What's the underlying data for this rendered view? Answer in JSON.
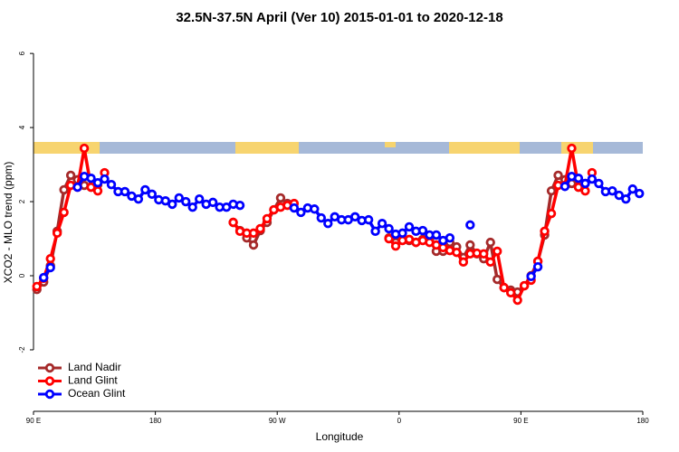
{
  "chart_data": {
    "type": "line",
    "title": "32.5N-37.5N April (Ver 10)   2015-01-01 to 2020-12-18",
    "x_label": "Longitude",
    "y_label": "XCO2 - MLO trend (ppm)",
    "xlim": [
      90,
      540
    ],
    "ylim": [
      -3.66,
      6.54
    ],
    "xticks": [
      {
        "value": 90,
        "label": "90 E"
      },
      180,
      {
        "value": 270,
        "label": "90 W"
      },
      {
        "value": 360,
        "label": "0"
      },
      {
        "value": 450,
        "label": "90 E"
      },
      {
        "value": 540,
        "label": "180"
      }
    ],
    "yticks": [
      -2,
      0,
      2,
      4,
      6
    ],
    "legend": "bottomleft",
    "series": [
      {
        "name": "Land Nadir",
        "color": "#a52a2a",
        "x": [
          92.5,
          97.5,
          102.5,
          107.5,
          112.5,
          117.5,
          122.5,
          127.5,
          132.5,
          137.5,
          142.5,
          237.5,
          242.5,
          247.5,
          252.5,
          257.5,
          262.5,
          267.5,
          272.5,
          277.5,
          282.5,
          352.5,
          357.5,
          362.5,
          367.5,
          372.5,
          377.5,
          382.5,
          387.5,
          392.5,
          397.5,
          402.5,
          407.5,
          412.5,
          417.5,
          422.5,
          427.5,
          432.5,
          437.5,
          442.5,
          447.5,
          452.5,
          457.5,
          462.5,
          467.5,
          472.5,
          477.5,
          482.5,
          487.5,
          492.5,
          497.5
        ],
        "values": [
          -0.37,
          -0.17,
          0.27,
          1.2,
          2.32,
          2.71,
          2.59,
          2.44,
          2.39,
          2.46,
          null,
          1.44,
          1.22,
          1.02,
          0.83,
          1.22,
          1.44,
          1.78,
          2.1,
          1.95,
          null,
          1.02,
          0.9,
          0.98,
          0.95,
          0.9,
          0.98,
          0.98,
          0.66,
          0.66,
          0.9,
          0.78,
          0.49,
          0.83,
          0.59,
          0.46,
          0.9,
          -0.1,
          -0.32,
          -0.39,
          -0.44,
          -0.27,
          0.0,
          0.39,
          1.1,
          2.29,
          2.71,
          2.59,
          2.49,
          2.39,
          2.49
        ]
      },
      {
        "name": "Land Glint",
        "color": "#ff0000",
        "x": [
          92.5,
          97.5,
          102.5,
          107.5,
          112.5,
          117.5,
          122.5,
          127.5,
          132.5,
          137.5,
          142.5,
          147.5,
          237.5,
          242.5,
          247.5,
          252.5,
          257.5,
          262.5,
          267.5,
          272.5,
          277.5,
          282.5,
          287.5,
          352.5,
          357.5,
          362.5,
          367.5,
          372.5,
          377.5,
          382.5,
          387.5,
          392.5,
          397.5,
          402.5,
          407.5,
          412.5,
          417.5,
          422.5,
          427.5,
          432.5,
          437.5,
          442.5,
          447.5,
          452.5,
          457.5,
          462.5,
          467.5,
          472.5,
          477.5,
          482.5,
          487.5,
          492.5,
          497.5,
          502.5
        ],
        "values": [
          -0.29,
          -0.07,
          0.46,
          1.15,
          1.71,
          2.44,
          2.39,
          3.44,
          2.39,
          2.29,
          2.78,
          null,
          1.44,
          1.2,
          1.15,
          1.15,
          1.27,
          1.54,
          1.78,
          1.85,
          1.9,
          1.95,
          null,
          1.0,
          0.8,
          0.95,
          0.98,
          0.9,
          0.95,
          0.9,
          0.83,
          0.76,
          0.68,
          0.63,
          0.37,
          0.59,
          0.61,
          0.59,
          0.37,
          0.66,
          -0.32,
          -0.46,
          -0.66,
          -0.27,
          -0.12,
          0.39,
          1.2,
          1.68,
          2.44,
          2.44,
          3.44,
          2.39,
          2.29,
          2.78
        ]
      },
      {
        "name": "Ocean Glint",
        "color": "#0000ff",
        "x": [
          97.5,
          102.5,
          107.5,
          122.5,
          127.5,
          132.5,
          137.5,
          142.5,
          147.5,
          152.5,
          157.5,
          162.5,
          167.5,
          172.5,
          177.5,
          182.5,
          187.5,
          192.5,
          197.5,
          202.5,
          207.5,
          212.5,
          217.5,
          222.5,
          227.5,
          232.5,
          237.5,
          242.5,
          247.5,
          282.5,
          287.5,
          292.5,
          297.5,
          302.5,
          307.5,
          312.5,
          317.5,
          322.5,
          327.5,
          332.5,
          337.5,
          342.5,
          347.5,
          352.5,
          357.5,
          362.5,
          367.5,
          372.5,
          377.5,
          382.5,
          387.5,
          392.5,
          397.5,
          402.5,
          412.5,
          417.5,
          457.5,
          462.5,
          467.5,
          482.5,
          487.5,
          492.5,
          497.5,
          502.5,
          507.5,
          512.5,
          517.5,
          522.5,
          527.5,
          532.5,
          537.5
        ],
        "values": [
          -0.05,
          0.22,
          null,
          2.39,
          2.68,
          2.63,
          2.51,
          2.61,
          2.46,
          2.27,
          2.27,
          2.15,
          2.07,
          2.32,
          2.2,
          2.05,
          2.02,
          1.93,
          2.1,
          2.0,
          1.85,
          2.07,
          1.93,
          1.98,
          1.85,
          1.85,
          1.93,
          1.9,
          null,
          1.83,
          1.71,
          1.83,
          1.8,
          1.56,
          1.41,
          1.59,
          1.51,
          1.51,
          1.59,
          1.49,
          1.51,
          1.2,
          1.41,
          1.27,
          1.12,
          1.15,
          1.32,
          1.2,
          1.22,
          1.1,
          1.1,
          0.95,
          1.02,
          null,
          1.37,
          null,
          -0.02,
          0.24,
          null,
          2.41,
          2.68,
          2.63,
          2.49,
          2.61,
          2.49,
          2.27,
          2.29,
          2.17,
          2.07,
          2.34,
          2.22
        ]
      }
    ]
  }
}
